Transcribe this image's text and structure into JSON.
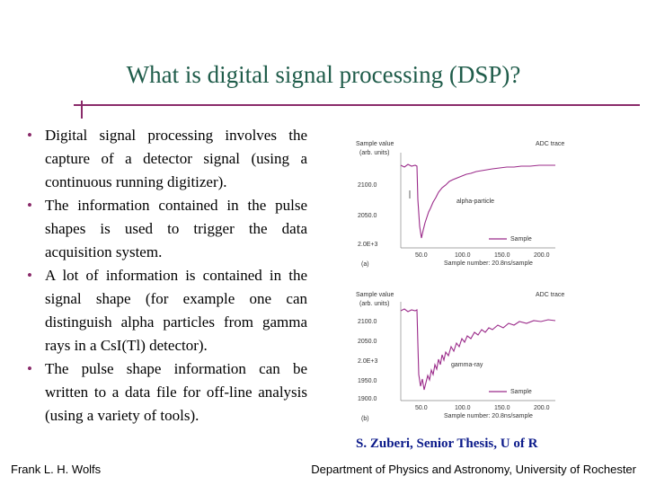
{
  "slide": {
    "title": "What is digital signal processing (DSP)?",
    "bullets": [
      "Digital signal processing involves the capture of a detector signal (using a continuous running digitizer).",
      "The information contained in the pulse shapes is used to trigger the data acquisition system.",
      "A lot of information is contained in the signal shape (for example one can distinguish alpha particles from gamma rays in a CsI(Tl) detector).",
      "The pulse shape information can be written to a data file for off-line analysis (using a variety of tools)."
    ],
    "credit": "S. Zuberi, Senior Thesis, U of R",
    "footer_left": "Frank L. H. Wolfs",
    "footer_right": "Department of Physics and Astronomy, University of Rochester"
  },
  "colors": {
    "title": "#1f5c4a",
    "rule": "#8a2b6a",
    "credit": "#0b1a8a",
    "trace": "#9b2b8a"
  },
  "plots": {
    "a": {
      "ylabel": "Sample value",
      "yunit": "(arb. units)",
      "title": "ADC trace",
      "yticks": [
        "2100.0",
        "2050.0",
        "2.0E+3"
      ],
      "xticks": [
        "50.0",
        "100.0",
        "150.0",
        "200.0"
      ],
      "xlabel": "Sample number: 20.8ns/sample",
      "annotation": "alpha-particle",
      "legend": "Sample",
      "panel": "(a)"
    },
    "b": {
      "ylabel": "Sample value",
      "yunit": "(arb. units)",
      "title": "ADC trace",
      "yticks": [
        "2100.0",
        "2050.0",
        "2.0E+3",
        "1950.0",
        "1900.0"
      ],
      "xticks": [
        "50.0",
        "100.0",
        "150.0",
        "200.0"
      ],
      "xlabel": "Sample number: 20.8ns/sample",
      "annotation": "gamma-ray",
      "legend": "Sample",
      "panel": "(b)"
    }
  }
}
